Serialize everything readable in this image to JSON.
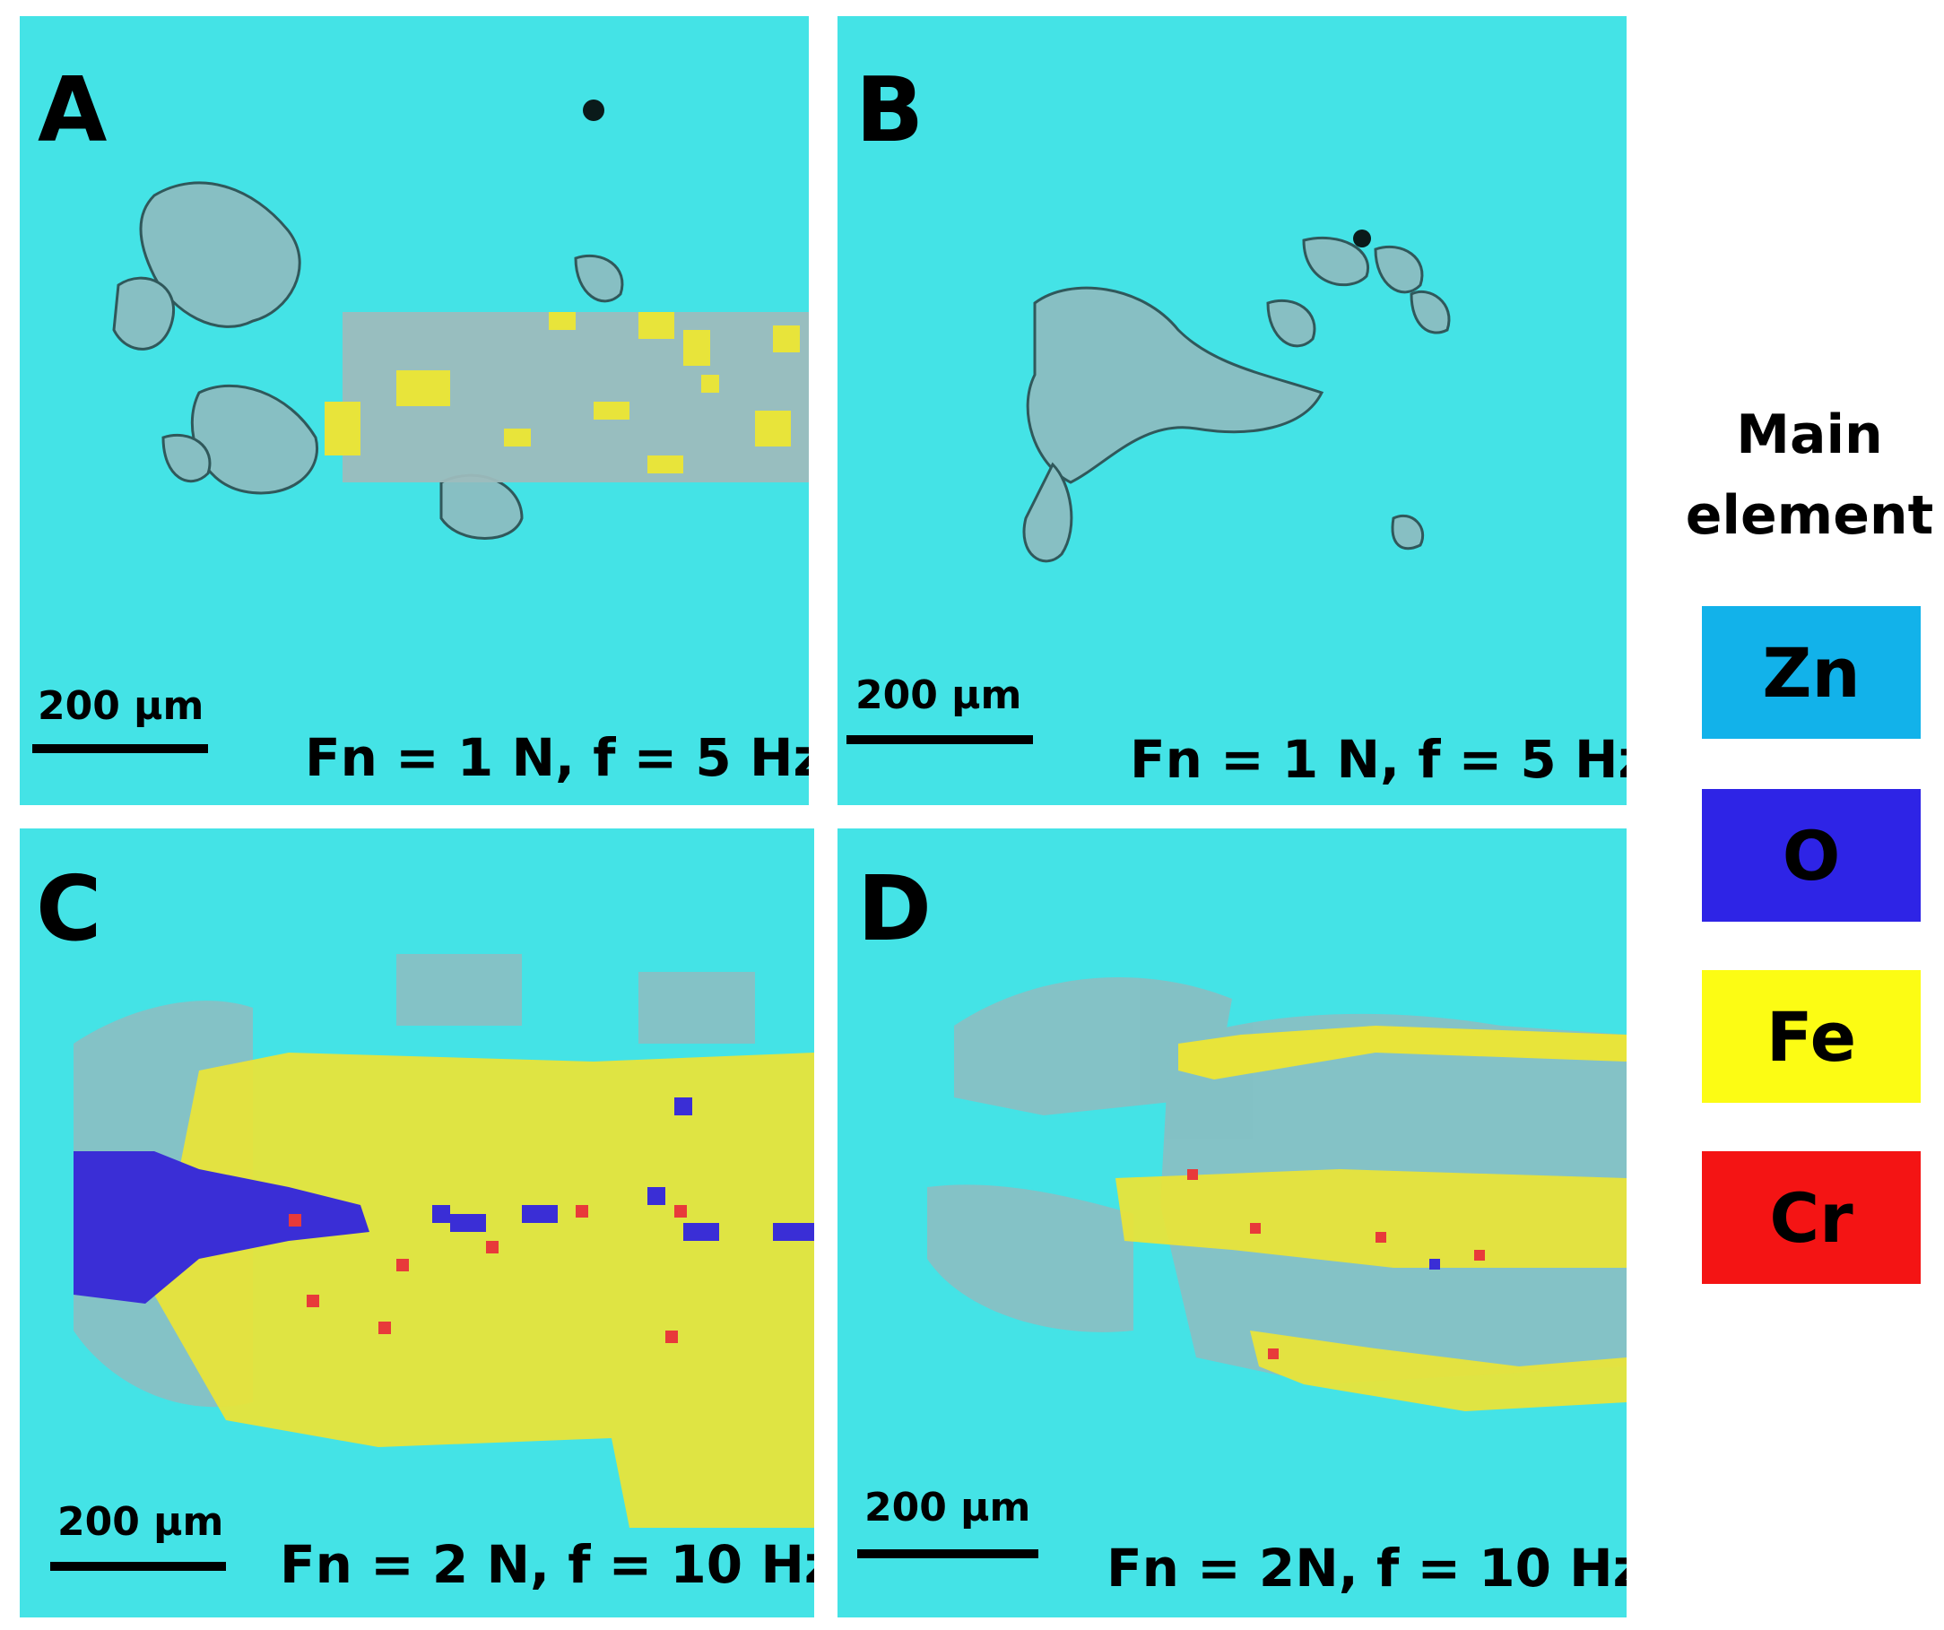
{
  "panels": [
    {
      "letter": "A",
      "scale": "200 µm",
      "condition": "Fn = 1 N, f = 5 Hz"
    },
    {
      "letter": "B",
      "scale": "200 µm",
      "condition": "Fn = 1 N, f = 5 Hz"
    },
    {
      "letter": "C",
      "scale": "200 µm",
      "condition": "Fn = 2 N, f = 10 Hz"
    },
    {
      "letter": "D",
      "scale": "200 µm",
      "condition": "Fn = 2N, f = 10 Hz"
    }
  ],
  "legend": {
    "title_line1": "Main",
    "title_line2": "element",
    "items": [
      {
        "label": "Zn",
        "color": "#12b2ea"
      },
      {
        "label": "O",
        "color": "#2e24e6"
      },
      {
        "label": "Fe",
        "color": "#fcfc14"
      },
      {
        "label": "Cr",
        "color": "#f41414"
      }
    ]
  },
  "colors": {
    "background": "#44e3e6",
    "wear_grey": "#8fbcc0",
    "fe": "#e8e43a",
    "o": "#3a2ed6",
    "cr": "#e83a3a"
  }
}
